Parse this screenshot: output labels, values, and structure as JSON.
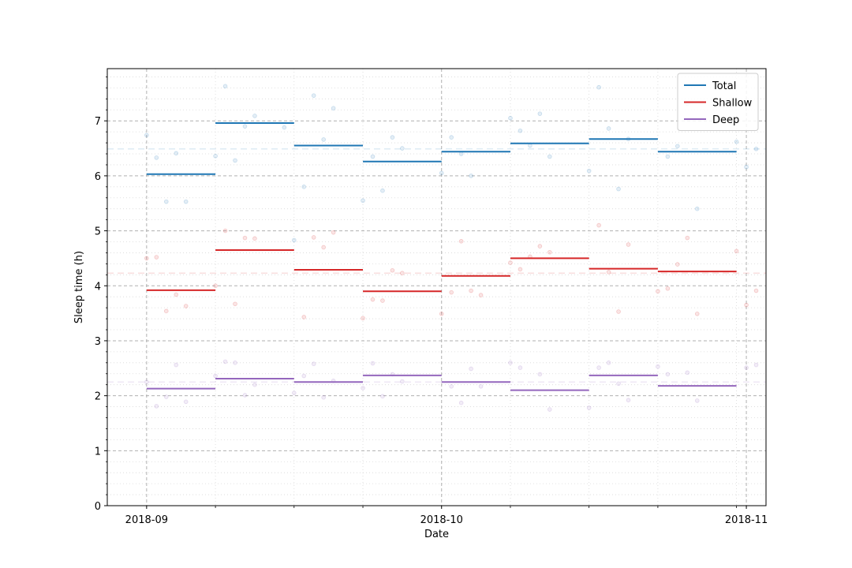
{
  "chart_data": {
    "type": "line",
    "xlabel": "Date",
    "ylabel": "Sleep time (h)",
    "xlim": [
      "2018-08-28",
      "2018-11-02"
    ],
    "ylim": [
      0,
      7.95
    ],
    "x_major_ticks": [
      {
        "date": "2018-09-01",
        "label": "2018-09"
      },
      {
        "date": "2018-10-01",
        "label": "2018-10"
      },
      {
        "date": "2018-11-01",
        "label": "2018-11"
      }
    ],
    "x_minor_ticks": [
      "2018-09-08",
      "2018-09-16",
      "2018-09-23",
      "2018-10-08",
      "2018-10-16",
      "2018-10-23",
      "2018-10-31"
    ],
    "y_ticks": [
      {
        "value": 0,
        "label": "0"
      },
      {
        "value": 1,
        "label": "1"
      },
      {
        "value": 2,
        "label": "2"
      },
      {
        "value": 3,
        "label": "3"
      },
      {
        "value": 4,
        "label": "4"
      },
      {
        "value": 5,
        "label": "5"
      },
      {
        "value": 6,
        "label": "6"
      },
      {
        "value": 7,
        "label": "7"
      }
    ],
    "grid": true,
    "legend_position": "top-right",
    "series": [
      {
        "name": "Total",
        "color": "#1f77b4",
        "mean": 6.49,
        "weekly": [
          {
            "start": "2018-09-01",
            "end": "2018-09-08",
            "value": 6.03
          },
          {
            "start": "2018-09-08",
            "end": "2018-09-16",
            "value": 6.96
          },
          {
            "start": "2018-09-16",
            "end": "2018-09-23",
            "value": 6.55
          },
          {
            "start": "2018-09-23",
            "end": "2018-10-01",
            "value": 6.26
          },
          {
            "start": "2018-10-01",
            "end": "2018-10-08",
            "value": 6.44
          },
          {
            "start": "2018-10-08",
            "end": "2018-10-16",
            "value": 6.59
          },
          {
            "start": "2018-10-16",
            "end": "2018-10-23",
            "value": 6.67
          },
          {
            "start": "2018-10-23",
            "end": "2018-10-31",
            "value": 6.44
          }
        ],
        "points": [
          [
            "2018-09-01",
            6.74
          ],
          [
            "2018-09-02",
            6.33
          ],
          [
            "2018-09-03",
            5.53
          ],
          [
            "2018-09-04",
            6.41
          ],
          [
            "2018-09-05",
            5.53
          ],
          [
            "2018-09-08",
            6.36
          ],
          [
            "2018-09-09",
            7.63
          ],
          [
            "2018-09-10",
            6.28
          ],
          [
            "2018-09-11",
            6.9
          ],
          [
            "2018-09-12",
            7.09
          ],
          [
            "2018-09-15",
            6.88
          ],
          [
            "2018-09-16",
            4.83
          ],
          [
            "2018-09-17",
            5.8
          ],
          [
            "2018-09-18",
            7.46
          ],
          [
            "2018-09-19",
            6.66
          ],
          [
            "2018-09-20",
            7.23
          ],
          [
            "2018-09-23",
            5.55
          ],
          [
            "2018-09-24",
            6.35
          ],
          [
            "2018-09-25",
            5.73
          ],
          [
            "2018-09-26",
            6.7
          ],
          [
            "2018-09-27",
            6.5
          ],
          [
            "2018-10-01",
            6.05
          ],
          [
            "2018-10-02",
            6.7
          ],
          [
            "2018-10-03",
            6.4
          ],
          [
            "2018-10-04",
            6.0
          ],
          [
            "2018-10-08",
            7.05
          ],
          [
            "2018-10-09",
            6.82
          ],
          [
            "2018-10-10",
            6.55
          ],
          [
            "2018-10-11",
            7.13
          ],
          [
            "2018-10-12",
            6.35
          ],
          [
            "2018-10-16",
            6.09
          ],
          [
            "2018-10-17",
            7.61
          ],
          [
            "2018-10-18",
            6.86
          ],
          [
            "2018-10-19",
            5.76
          ],
          [
            "2018-10-20",
            6.67
          ],
          [
            "2018-10-24",
            6.35
          ],
          [
            "2018-10-25",
            6.54
          ],
          [
            "2018-10-26",
            7.31
          ],
          [
            "2018-10-27",
            5.4
          ],
          [
            "2018-10-31",
            6.62
          ],
          [
            "2018-11-01",
            6.16
          ],
          [
            "2018-11-02",
            6.49
          ]
        ]
      },
      {
        "name": "Shallow",
        "color": "#d62728",
        "mean": 4.23,
        "weekly": [
          {
            "start": "2018-09-01",
            "end": "2018-09-08",
            "value": 3.92
          },
          {
            "start": "2018-09-08",
            "end": "2018-09-16",
            "value": 4.65
          },
          {
            "start": "2018-09-16",
            "end": "2018-09-23",
            "value": 4.29
          },
          {
            "start": "2018-09-23",
            "end": "2018-10-01",
            "value": 3.9
          },
          {
            "start": "2018-10-01",
            "end": "2018-10-08",
            "value": 4.18
          },
          {
            "start": "2018-10-08",
            "end": "2018-10-16",
            "value": 4.5
          },
          {
            "start": "2018-10-16",
            "end": "2018-10-23",
            "value": 4.31
          },
          {
            "start": "2018-10-23",
            "end": "2018-10-31",
            "value": 4.26
          }
        ],
        "points": [
          [
            "2018-09-01",
            4.5
          ],
          [
            "2018-09-02",
            4.52
          ],
          [
            "2018-09-03",
            3.54
          ],
          [
            "2018-09-04",
            3.84
          ],
          [
            "2018-09-05",
            3.63
          ],
          [
            "2018-09-08",
            4.0
          ],
          [
            "2018-09-09",
            5.0
          ],
          [
            "2018-09-10",
            3.67
          ],
          [
            "2018-09-11",
            4.87
          ],
          [
            "2018-09-12",
            4.86
          ],
          [
            "2018-09-17",
            3.43
          ],
          [
            "2018-09-18",
            4.88
          ],
          [
            "2018-09-19",
            4.7
          ],
          [
            "2018-09-20",
            4.97
          ],
          [
            "2018-09-23",
            3.41
          ],
          [
            "2018-09-24",
            3.75
          ],
          [
            "2018-09-25",
            3.73
          ],
          [
            "2018-09-26",
            4.28
          ],
          [
            "2018-09-27",
            4.23
          ],
          [
            "2018-10-01",
            3.49
          ],
          [
            "2018-10-02",
            3.88
          ],
          [
            "2018-10-03",
            4.81
          ],
          [
            "2018-10-04",
            3.91
          ],
          [
            "2018-10-05",
            3.83
          ],
          [
            "2018-10-08",
            4.42
          ],
          [
            "2018-10-09",
            4.3
          ],
          [
            "2018-10-10",
            4.53
          ],
          [
            "2018-10-11",
            4.72
          ],
          [
            "2018-10-12",
            4.61
          ],
          [
            "2018-10-17",
            5.1
          ],
          [
            "2018-10-18",
            4.25
          ],
          [
            "2018-10-19",
            3.53
          ],
          [
            "2018-10-20",
            4.75
          ],
          [
            "2018-10-23",
            3.9
          ],
          [
            "2018-10-24",
            3.95
          ],
          [
            "2018-10-25",
            4.39
          ],
          [
            "2018-10-26",
            4.87
          ],
          [
            "2018-10-27",
            3.49
          ],
          [
            "2018-10-31",
            4.63
          ],
          [
            "2018-11-01",
            3.65
          ],
          [
            "2018-11-02",
            3.91
          ]
        ]
      },
      {
        "name": "Deep",
        "color": "#9467bd",
        "mean": 2.25,
        "weekly": [
          {
            "start": "2018-09-01",
            "end": "2018-09-08",
            "value": 2.13
          },
          {
            "start": "2018-09-08",
            "end": "2018-09-16",
            "value": 2.31
          },
          {
            "start": "2018-09-16",
            "end": "2018-09-23",
            "value": 2.25
          },
          {
            "start": "2018-09-23",
            "end": "2018-10-01",
            "value": 2.37
          },
          {
            "start": "2018-10-01",
            "end": "2018-10-08",
            "value": 2.25
          },
          {
            "start": "2018-10-08",
            "end": "2018-10-16",
            "value": 2.1
          },
          {
            "start": "2018-10-16",
            "end": "2018-10-23",
            "value": 2.37
          },
          {
            "start": "2018-10-23",
            "end": "2018-10-31",
            "value": 2.18
          }
        ],
        "points": [
          [
            "2018-09-01",
            2.25
          ],
          [
            "2018-09-02",
            1.81
          ],
          [
            "2018-09-03",
            1.98
          ],
          [
            "2018-09-04",
            2.56
          ],
          [
            "2018-09-05",
            1.89
          ],
          [
            "2018-09-08",
            2.36
          ],
          [
            "2018-09-09",
            2.62
          ],
          [
            "2018-09-10",
            2.6
          ],
          [
            "2018-09-11",
            2.01
          ],
          [
            "2018-09-12",
            2.2
          ],
          [
            "2018-09-16",
            2.05
          ],
          [
            "2018-09-17",
            2.36
          ],
          [
            "2018-09-18",
            2.58
          ],
          [
            "2018-09-19",
            1.97
          ],
          [
            "2018-09-20",
            2.27
          ],
          [
            "2018-09-23",
            2.14
          ],
          [
            "2018-09-24",
            2.59
          ],
          [
            "2018-09-25",
            1.99
          ],
          [
            "2018-09-26",
            2.39
          ],
          [
            "2018-09-27",
            2.26
          ],
          [
            "2018-10-02",
            2.17
          ],
          [
            "2018-10-03",
            1.87
          ],
          [
            "2018-10-04",
            2.49
          ],
          [
            "2018-10-05",
            2.17
          ],
          [
            "2018-10-08",
            2.6
          ],
          [
            "2018-10-09",
            2.51
          ],
          [
            "2018-10-11",
            2.39
          ],
          [
            "2018-10-12",
            1.75
          ],
          [
            "2018-10-16",
            1.78
          ],
          [
            "2018-10-17",
            2.51
          ],
          [
            "2018-10-18",
            2.6
          ],
          [
            "2018-10-19",
            2.22
          ],
          [
            "2018-10-20",
            1.92
          ],
          [
            "2018-10-23",
            2.53
          ],
          [
            "2018-10-24",
            2.39
          ],
          [
            "2018-10-26",
            2.42
          ],
          [
            "2018-10-27",
            1.91
          ],
          [
            "2018-11-01",
            2.51
          ],
          [
            "2018-11-02",
            2.56
          ]
        ]
      }
    ]
  }
}
